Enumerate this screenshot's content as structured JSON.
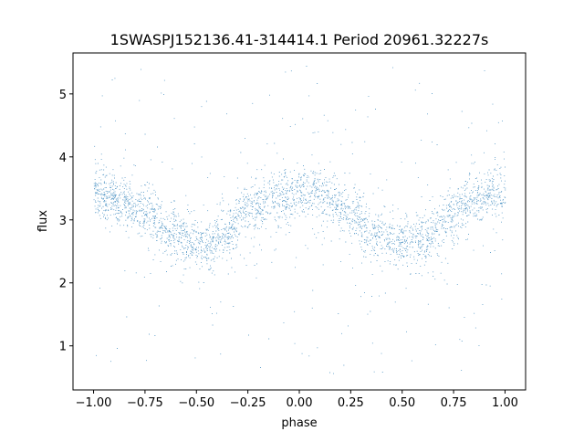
{
  "chart_data": {
    "type": "scatter",
    "title": "1SWASPJ152136.41-314414.1 Period 20961.32227s",
    "xlabel": "phase",
    "ylabel": "flux",
    "xlim": [
      -1.1,
      1.1
    ],
    "ylim": [
      0.3,
      5.65
    ],
    "x_ticks": [
      -1.0,
      -0.75,
      -0.5,
      -0.25,
      0.0,
      0.25,
      0.5,
      0.75,
      1.0
    ],
    "x_tick_labels": [
      "−1.00",
      "−0.75",
      "−0.50",
      "−0.25",
      "0.00",
      "0.25",
      "0.50",
      "0.75",
      "1.00"
    ],
    "y_ticks": [
      1,
      2,
      3,
      4,
      5
    ],
    "y_tick_labels": [
      "1",
      "2",
      "3",
      "4",
      "5"
    ],
    "grid": false,
    "series": [
      {
        "color": "#1f77b4",
        "marker": "small dot",
        "phase_range": [
          -1.0,
          1.0
        ],
        "n_points": 30000,
        "trend": {
          "phase": [
            -1.0,
            -0.875,
            -0.75,
            -0.625,
            -0.5,
            -0.45,
            -0.375,
            -0.25,
            -0.125,
            0.0,
            0.05,
            0.125,
            0.25,
            0.375,
            0.5,
            0.55,
            0.625,
            0.75,
            0.875,
            1.0
          ],
          "flux": [
            3.4,
            3.35,
            3.1,
            2.8,
            2.62,
            2.6,
            2.75,
            3.15,
            3.35,
            3.42,
            3.45,
            3.4,
            3.1,
            2.8,
            2.62,
            2.6,
            2.72,
            3.1,
            3.35,
            3.45
          ]
        },
        "core_spread": 0.2,
        "outlier_range": [
          0.5,
          5.5
        ]
      }
    ]
  }
}
